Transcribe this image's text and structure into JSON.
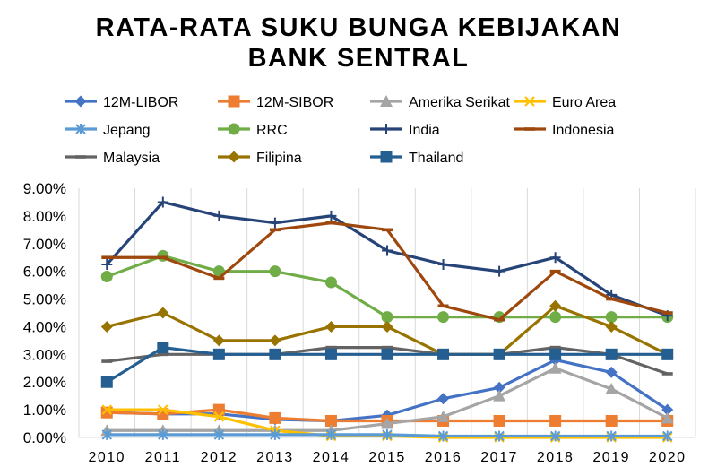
{
  "chart_data": {
    "type": "line",
    "title_line1": "RATA-RATA SUKU BUNGA KEBIJAKAN",
    "title_line2": "BANK SENTRAL",
    "xlabel": "",
    "ylabel": "",
    "categories": [
      "2010",
      "2011",
      "2012",
      "2013",
      "2014",
      "2015",
      "2016",
      "2017",
      "2018",
      "2019",
      "2020"
    ],
    "y_ticks": [
      "0.00%",
      "1.00%",
      "2.00%",
      "3.00%",
      "4.00%",
      "5.00%",
      "6.00%",
      "7.00%",
      "8.00%",
      "9.00%"
    ],
    "ylim": [
      0,
      9
    ],
    "grid": "vertical",
    "legend_position": "top",
    "series": [
      {
        "name": "12M-LIBOR",
        "color": "#4472C4",
        "marker": "diamond",
        "values": [
          0.9,
          0.85,
          0.85,
          0.65,
          0.6,
          0.8,
          1.4,
          1.8,
          2.8,
          2.35,
          1.0
        ]
      },
      {
        "name": "12M-SIBOR",
        "color": "#ED7D31",
        "marker": "square",
        "values": [
          0.9,
          0.85,
          1.0,
          0.7,
          0.6,
          0.6,
          0.6,
          0.6,
          0.6,
          0.6,
          0.6
        ]
      },
      {
        "name": "Amerika Serikat",
        "color": "#A5A5A5",
        "marker": "triangle",
        "values": [
          0.25,
          0.25,
          0.25,
          0.25,
          0.25,
          0.5,
          0.75,
          1.5,
          2.5,
          1.75,
          0.7
        ]
      },
      {
        "name": "Euro Area",
        "color": "#FFC000",
        "marker": "x",
        "values": [
          1.0,
          1.0,
          0.75,
          0.25,
          0.05,
          0.05,
          0.0,
          0.0,
          0.0,
          0.0,
          0.0
        ]
      },
      {
        "name": "Jepang",
        "color": "#5B9BD5",
        "marker": "star",
        "values": [
          0.1,
          0.1,
          0.1,
          0.1,
          0.1,
          0.1,
          0.05,
          0.05,
          0.05,
          0.05,
          0.05
        ]
      },
      {
        "name": "RRC",
        "color": "#70AD47",
        "marker": "circle",
        "values": [
          5.81,
          6.56,
          6.0,
          6.0,
          5.6,
          4.35,
          4.35,
          4.35,
          4.35,
          4.35,
          4.35
        ]
      },
      {
        "name": "India",
        "color": "#264478",
        "marker": "plus",
        "values": [
          6.25,
          8.5,
          8.0,
          7.75,
          8.0,
          6.75,
          6.25,
          6.0,
          6.5,
          5.15,
          4.4
        ]
      },
      {
        "name": "Indonesia",
        "color": "#9E480E",
        "marker": "dash",
        "values": [
          6.5,
          6.5,
          5.75,
          7.5,
          7.75,
          7.5,
          4.75,
          4.25,
          6.0,
          5.0,
          4.5
        ]
      },
      {
        "name": "Malaysia",
        "color": "#636363",
        "marker": "dash",
        "values": [
          2.75,
          3.0,
          3.0,
          3.0,
          3.25,
          3.25,
          3.0,
          3.0,
          3.25,
          3.0,
          2.3
        ]
      },
      {
        "name": "Filipina",
        "color": "#997300",
        "marker": "diamond",
        "values": [
          4.0,
          4.5,
          3.5,
          3.5,
          4.0,
          4.0,
          3.0,
          3.0,
          4.75,
          4.0,
          3.0
        ]
      },
      {
        "name": "Thailand",
        "color": "#255E91",
        "marker": "square",
        "values": [
          2.0,
          3.25,
          3.0,
          3.0,
          3.0,
          3.0,
          3.0,
          3.0,
          3.0,
          3.0,
          3.0
        ]
      }
    ]
  }
}
